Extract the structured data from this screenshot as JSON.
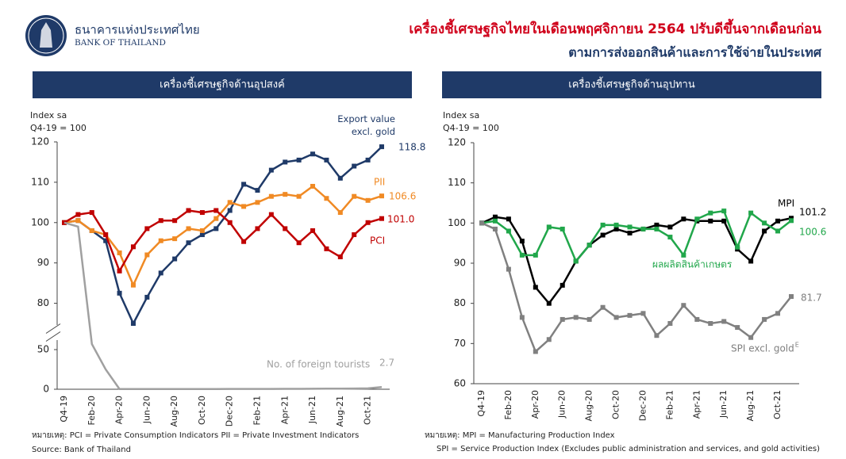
{
  "header": {
    "bank_thai": "ธนาคารแห่งประเทศไทย",
    "bank_en": "BANK OF THAILAND",
    "title": "เครื่องชี้เศรษฐกิจไทยในเดือนพฤศจิกายน 2564 ปรับดีขึ้นจากเดือนก่อน",
    "subtitle": "ตามการส่งออกสินค้าและการใช้จ่ายในประเทศ"
  },
  "chart_data": [
    {
      "type": "line",
      "title": "เครื่องชี้เศรษฐกิจด้านอุปสงค์",
      "y_label": [
        "Index sa",
        "Q4-19 = 100"
      ],
      "categories": [
        "Q4-19",
        null,
        "Feb-20",
        null,
        "Apr-20",
        null,
        "Jun-20",
        null,
        "Aug-20",
        null,
        "Oct-20",
        null,
        "Dec-20",
        null,
        "Feb-21",
        null,
        "Apr-21",
        null,
        "Jun-21",
        null,
        "Aug-21",
        null,
        "Oct-21",
        null
      ],
      "ylim": [
        0,
        120
      ],
      "ybreak": [
        60,
        75
      ],
      "yticks": [
        0,
        50,
        80,
        90,
        100,
        110,
        120
      ],
      "series": [
        {
          "name": "Export value excl. gold",
          "color": "#1f3a68",
          "values": [
            100,
            100.5,
            98,
            95.5,
            82.5,
            75,
            81.5,
            87.5,
            91,
            95,
            97,
            98.5,
            103,
            109.5,
            108,
            113,
            115,
            115.5,
            117,
            115.5,
            111,
            114,
            115.5,
            118.8
          ],
          "value_labels": [
            null,
            null,
            null,
            null,
            null,
            null,
            null,
            null,
            null,
            null,
            null,
            null,
            null,
            null,
            null,
            null,
            null,
            null,
            null,
            null,
            null,
            null,
            null,
            "118.8"
          ]
        },
        {
          "name": "PII",
          "color": "#f08a24",
          "values": [
            100,
            100.5,
            98,
            97,
            92.5,
            84.5,
            92,
            95.5,
            96,
            98.5,
            98,
            101,
            105,
            104,
            105,
            106.5,
            107,
            106.5,
            109,
            106,
            102.5,
            106.5,
            105.5,
            106.6
          ],
          "value_labels": [
            null,
            null,
            null,
            null,
            null,
            null,
            null,
            null,
            null,
            null,
            null,
            null,
            null,
            null,
            null,
            null,
            null,
            null,
            null,
            null,
            null,
            null,
            null,
            "106.6"
          ]
        },
        {
          "name": "PCI",
          "color": "#c00000",
          "values": [
            100,
            102,
            102.5,
            97,
            88,
            94,
            98.5,
            100.5,
            100.5,
            103,
            102.5,
            103,
            100,
            95.3,
            98.5,
            102,
            98.5,
            95,
            98,
            93.5,
            91.5,
            97,
            100,
            101
          ],
          "value_labels": [
            null,
            null,
            null,
            null,
            null,
            null,
            null,
            null,
            null,
            null,
            null,
            null,
            null,
            null,
            null,
            null,
            null,
            null,
            null,
            null,
            null,
            null,
            null,
            "101.0"
          ]
        },
        {
          "name": "No. of foreign tourists",
          "color": "#a0a0a0",
          "values": [
            100,
            99,
            57,
            25,
            0.3,
            0.2,
            0.2,
            0.2,
            0.2,
            0.2,
            0.3,
            0.3,
            0.4,
            0.4,
            0.4,
            0.4,
            0.5,
            0.5,
            0.6,
            0.7,
            0.8,
            0.9,
            1.1,
            2.7
          ],
          "value_labels": [
            null,
            null,
            null,
            null,
            null,
            null,
            null,
            null,
            null,
            null,
            null,
            null,
            null,
            null,
            null,
            null,
            null,
            null,
            null,
            null,
            null,
            null,
            null,
            "2.7"
          ]
        }
      ],
      "footnotes": [
        "หมายเหตุ: PCI = Private Consumption Indicators    PII = Private Investment Indicators",
        "Source: Bank of Thailand"
      ]
    },
    {
      "type": "line",
      "title": "เครื่องชี้เศรษฐกิจด้านอุปทาน",
      "y_label": [
        "Index sa",
        "Q4-19 = 100"
      ],
      "categories": [
        "Q4-19",
        null,
        "Feb-20",
        null,
        "Apr-20",
        null,
        "Jun-20",
        null,
        "Aug-20",
        null,
        "Oct-20",
        null,
        "Dec-20",
        null,
        "Feb-21",
        null,
        "Apr-21",
        null,
        "Jun-21",
        null,
        "Aug-21",
        null,
        "Oct-21",
        null
      ],
      "ylim": [
        60,
        120
      ],
      "yticks": [
        60,
        70,
        80,
        90,
        100,
        110,
        120
      ],
      "series": [
        {
          "name": "MPI",
          "color": "#000000",
          "values": [
            100,
            101.5,
            101,
            95.5,
            84,
            80,
            84.5,
            90.5,
            94.5,
            97,
            98.5,
            97.5,
            98.5,
            99.5,
            99,
            101,
            100.5,
            100.5,
            100.5,
            93.5,
            90.5,
            98,
            100.5,
            101.2
          ],
          "value_labels": [
            null,
            null,
            null,
            null,
            null,
            null,
            null,
            null,
            null,
            null,
            null,
            null,
            null,
            null,
            null,
            null,
            null,
            null,
            null,
            null,
            null,
            null,
            null,
            "101.2"
          ]
        },
        {
          "name": "ผลผลิตสินค้าเกษตร",
          "color": "#21a74b",
          "values": [
            100,
            100.5,
            98,
            92,
            92,
            99,
            98.5,
            90.5,
            94.5,
            99.5,
            99.5,
            99,
            98.5,
            98.5,
            96.5,
            92,
            101,
            102.5,
            103,
            94,
            102.5,
            100,
            98,
            100.6
          ],
          "value_labels": [
            null,
            null,
            null,
            null,
            null,
            null,
            null,
            null,
            null,
            null,
            null,
            null,
            null,
            null,
            null,
            null,
            null,
            null,
            null,
            null,
            null,
            null,
            null,
            "100.6"
          ]
        },
        {
          "name": "SPI excl. gold",
          "name_superscript": "E",
          "color": "#808080",
          "values": [
            100,
            98.5,
            88.5,
            76.5,
            68,
            71,
            76,
            76.5,
            76,
            79,
            76.5,
            77,
            77.5,
            72,
            75,
            79.5,
            76,
            75,
            75.5,
            74,
            71.5,
            76,
            77.5,
            81.7
          ],
          "value_labels": [
            null,
            null,
            null,
            null,
            null,
            null,
            null,
            null,
            null,
            null,
            null,
            null,
            null,
            null,
            null,
            null,
            null,
            null,
            null,
            null,
            null,
            null,
            null,
            "81.7"
          ]
        }
      ],
      "footnotes": [
        "หมายเหตุ: MPI = Manufacturing Production Index",
        "SPI = Service Production Index (Excludes public administration and services, and gold activities)"
      ]
    }
  ]
}
